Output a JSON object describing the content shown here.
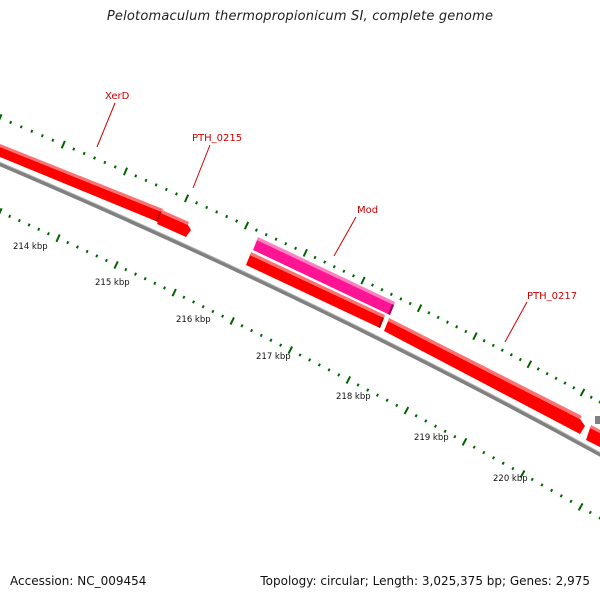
{
  "title": "Pelotomaculum thermopropionicum SI, complete genome",
  "footer": {
    "accession": "Accession: NC_009454",
    "summary": "Topology: circular; Length: 3,025,375 bp; Genes: 2,975"
  },
  "colors": {
    "forward_gene": "#ff0000",
    "mod_gene": "#ff1493",
    "backbone": "#808080",
    "ticks": "#006400",
    "label": "#cc0000"
  },
  "gene_labels": [
    {
      "id": "xerd",
      "text": "XerD"
    },
    {
      "id": "pth0215",
      "text": "PTH_0215"
    },
    {
      "id": "mod",
      "text": "Mod"
    },
    {
      "id": "pth0217",
      "text": "PTH_0217"
    }
  ],
  "kbp_labels": [
    {
      "id": "k214",
      "text": "214 kbp"
    },
    {
      "id": "k215",
      "text": "215 kbp"
    },
    {
      "id": "k216",
      "text": "216 kbp"
    },
    {
      "id": "k217",
      "text": "217 kbp"
    },
    {
      "id": "k218",
      "text": "218 kbp"
    },
    {
      "id": "k219",
      "text": "219 kbp"
    },
    {
      "id": "k220",
      "text": "220 kbp"
    }
  ]
}
